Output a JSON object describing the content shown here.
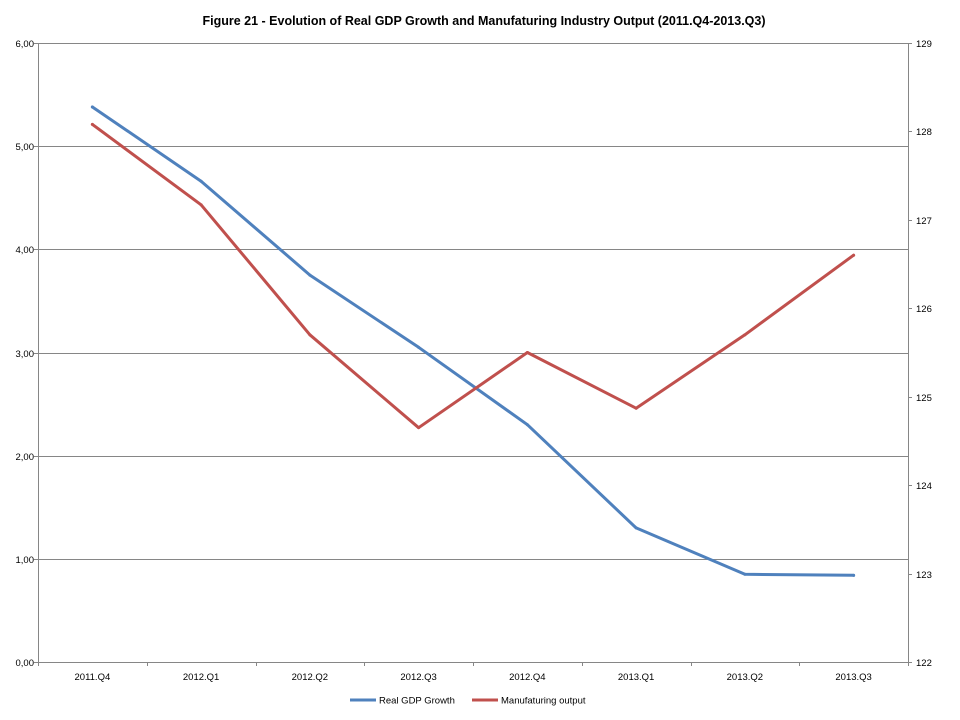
{
  "chart_data": {
    "type": "line",
    "title": "Figure 21 - Evolution  of Real GDP Growth and Manufaturing  Industry Output (2011.Q4-2013.Q3)",
    "categories": [
      "2011.Q4",
      "2012.Q1",
      "2012.Q2",
      "2012.Q3",
      "2012.Q4",
      "2013.Q1",
      "2013.Q2",
      "2013.Q3"
    ],
    "y_left": {
      "range": [
        0,
        6
      ],
      "ticks": [
        "0,00",
        "1,00",
        "2,00",
        "3,00",
        "4,00",
        "5,00",
        "6,00"
      ]
    },
    "y_right": {
      "range": [
        122,
        129
      ],
      "ticks": [
        "122",
        "123",
        "124",
        "125",
        "126",
        "127",
        "128",
        "129"
      ]
    },
    "grid": true,
    "legend_position": "bottom",
    "series": [
      {
        "name": "Real GDP Growth",
        "axis": "left",
        "color": "#4F81BD",
        "values": [
          5.38,
          4.66,
          3.75,
          3.05,
          2.3,
          1.3,
          0.85,
          0.84
        ]
      },
      {
        "name": "Manufaturing output",
        "axis": "right",
        "color": "#C0504D",
        "values": [
          128.08,
          127.17,
          125.7,
          124.65,
          125.5,
          124.87,
          125.7,
          126.6
        ]
      }
    ]
  }
}
